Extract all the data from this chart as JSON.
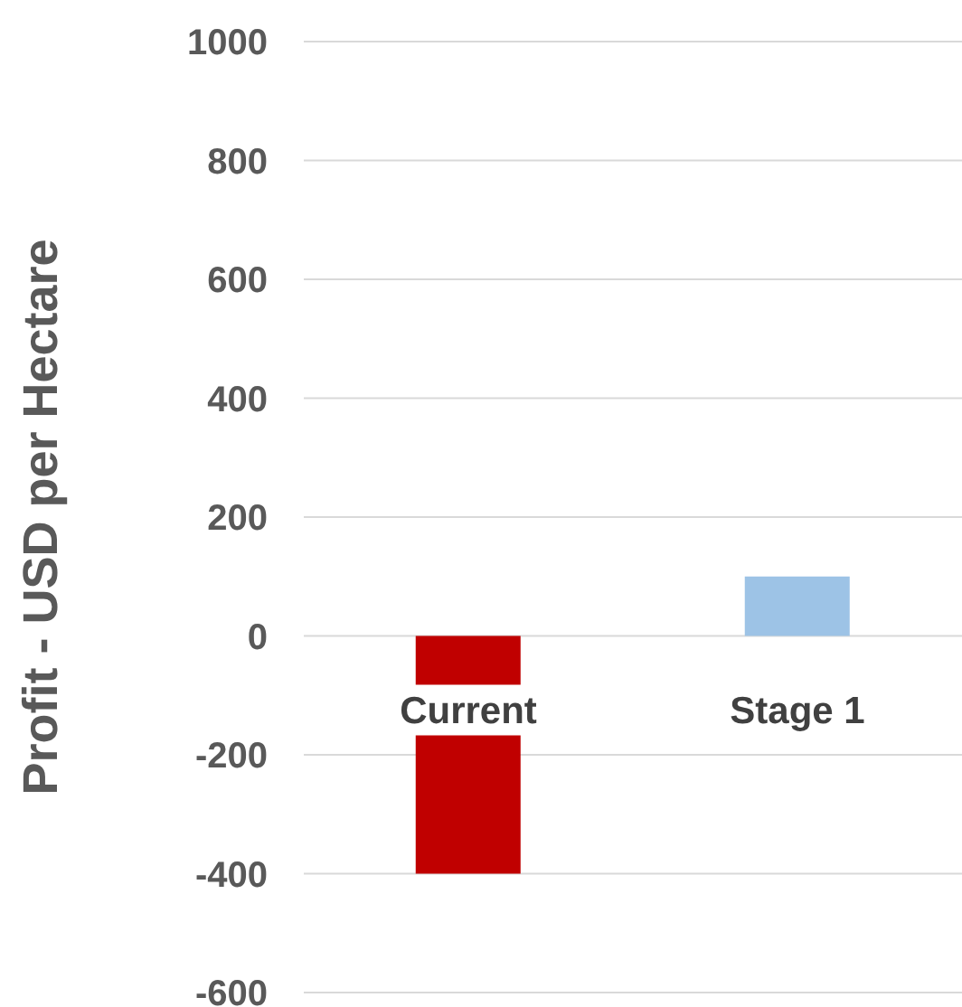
{
  "chart_data": {
    "type": "bar",
    "ylabel": "Profit - USD per Hectare",
    "categories": [
      "Current",
      "Stage 1"
    ],
    "values": [
      -400,
      100
    ],
    "colors": [
      "#c00000",
      "#9dc3e6"
    ],
    "ylim": [
      -600,
      1000
    ],
    "yticks": [
      -600,
      -400,
      -200,
      0,
      200,
      400,
      600,
      800,
      1000
    ],
    "grid": "y"
  }
}
